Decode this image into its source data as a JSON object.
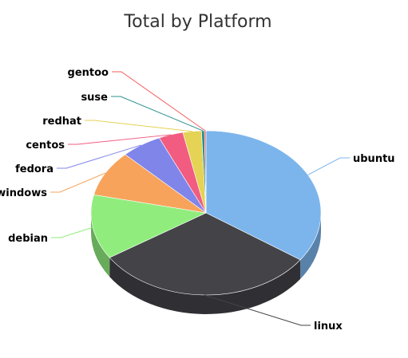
{
  "chart_data": {
    "type": "pie",
    "title": "Total by Platform",
    "three_d": true,
    "categories": [
      "ubuntu",
      "linux",
      "debian",
      "windows",
      "fedora",
      "centos",
      "redhat",
      "suse",
      "gentoo"
    ],
    "values": [
      33.3,
      29.9,
      12.2,
      8.7,
      5.5,
      3.3,
      2.5,
      0.4,
      0.2
    ],
    "colors": [
      "#7cb5ec",
      "#434348",
      "#90ed7d",
      "#f7a35c",
      "#8085e9",
      "#f15c80",
      "#e4d354",
      "#2b908f",
      "#f45b5b"
    ],
    "legend": "none",
    "data_labels": "outside with connectors"
  }
}
